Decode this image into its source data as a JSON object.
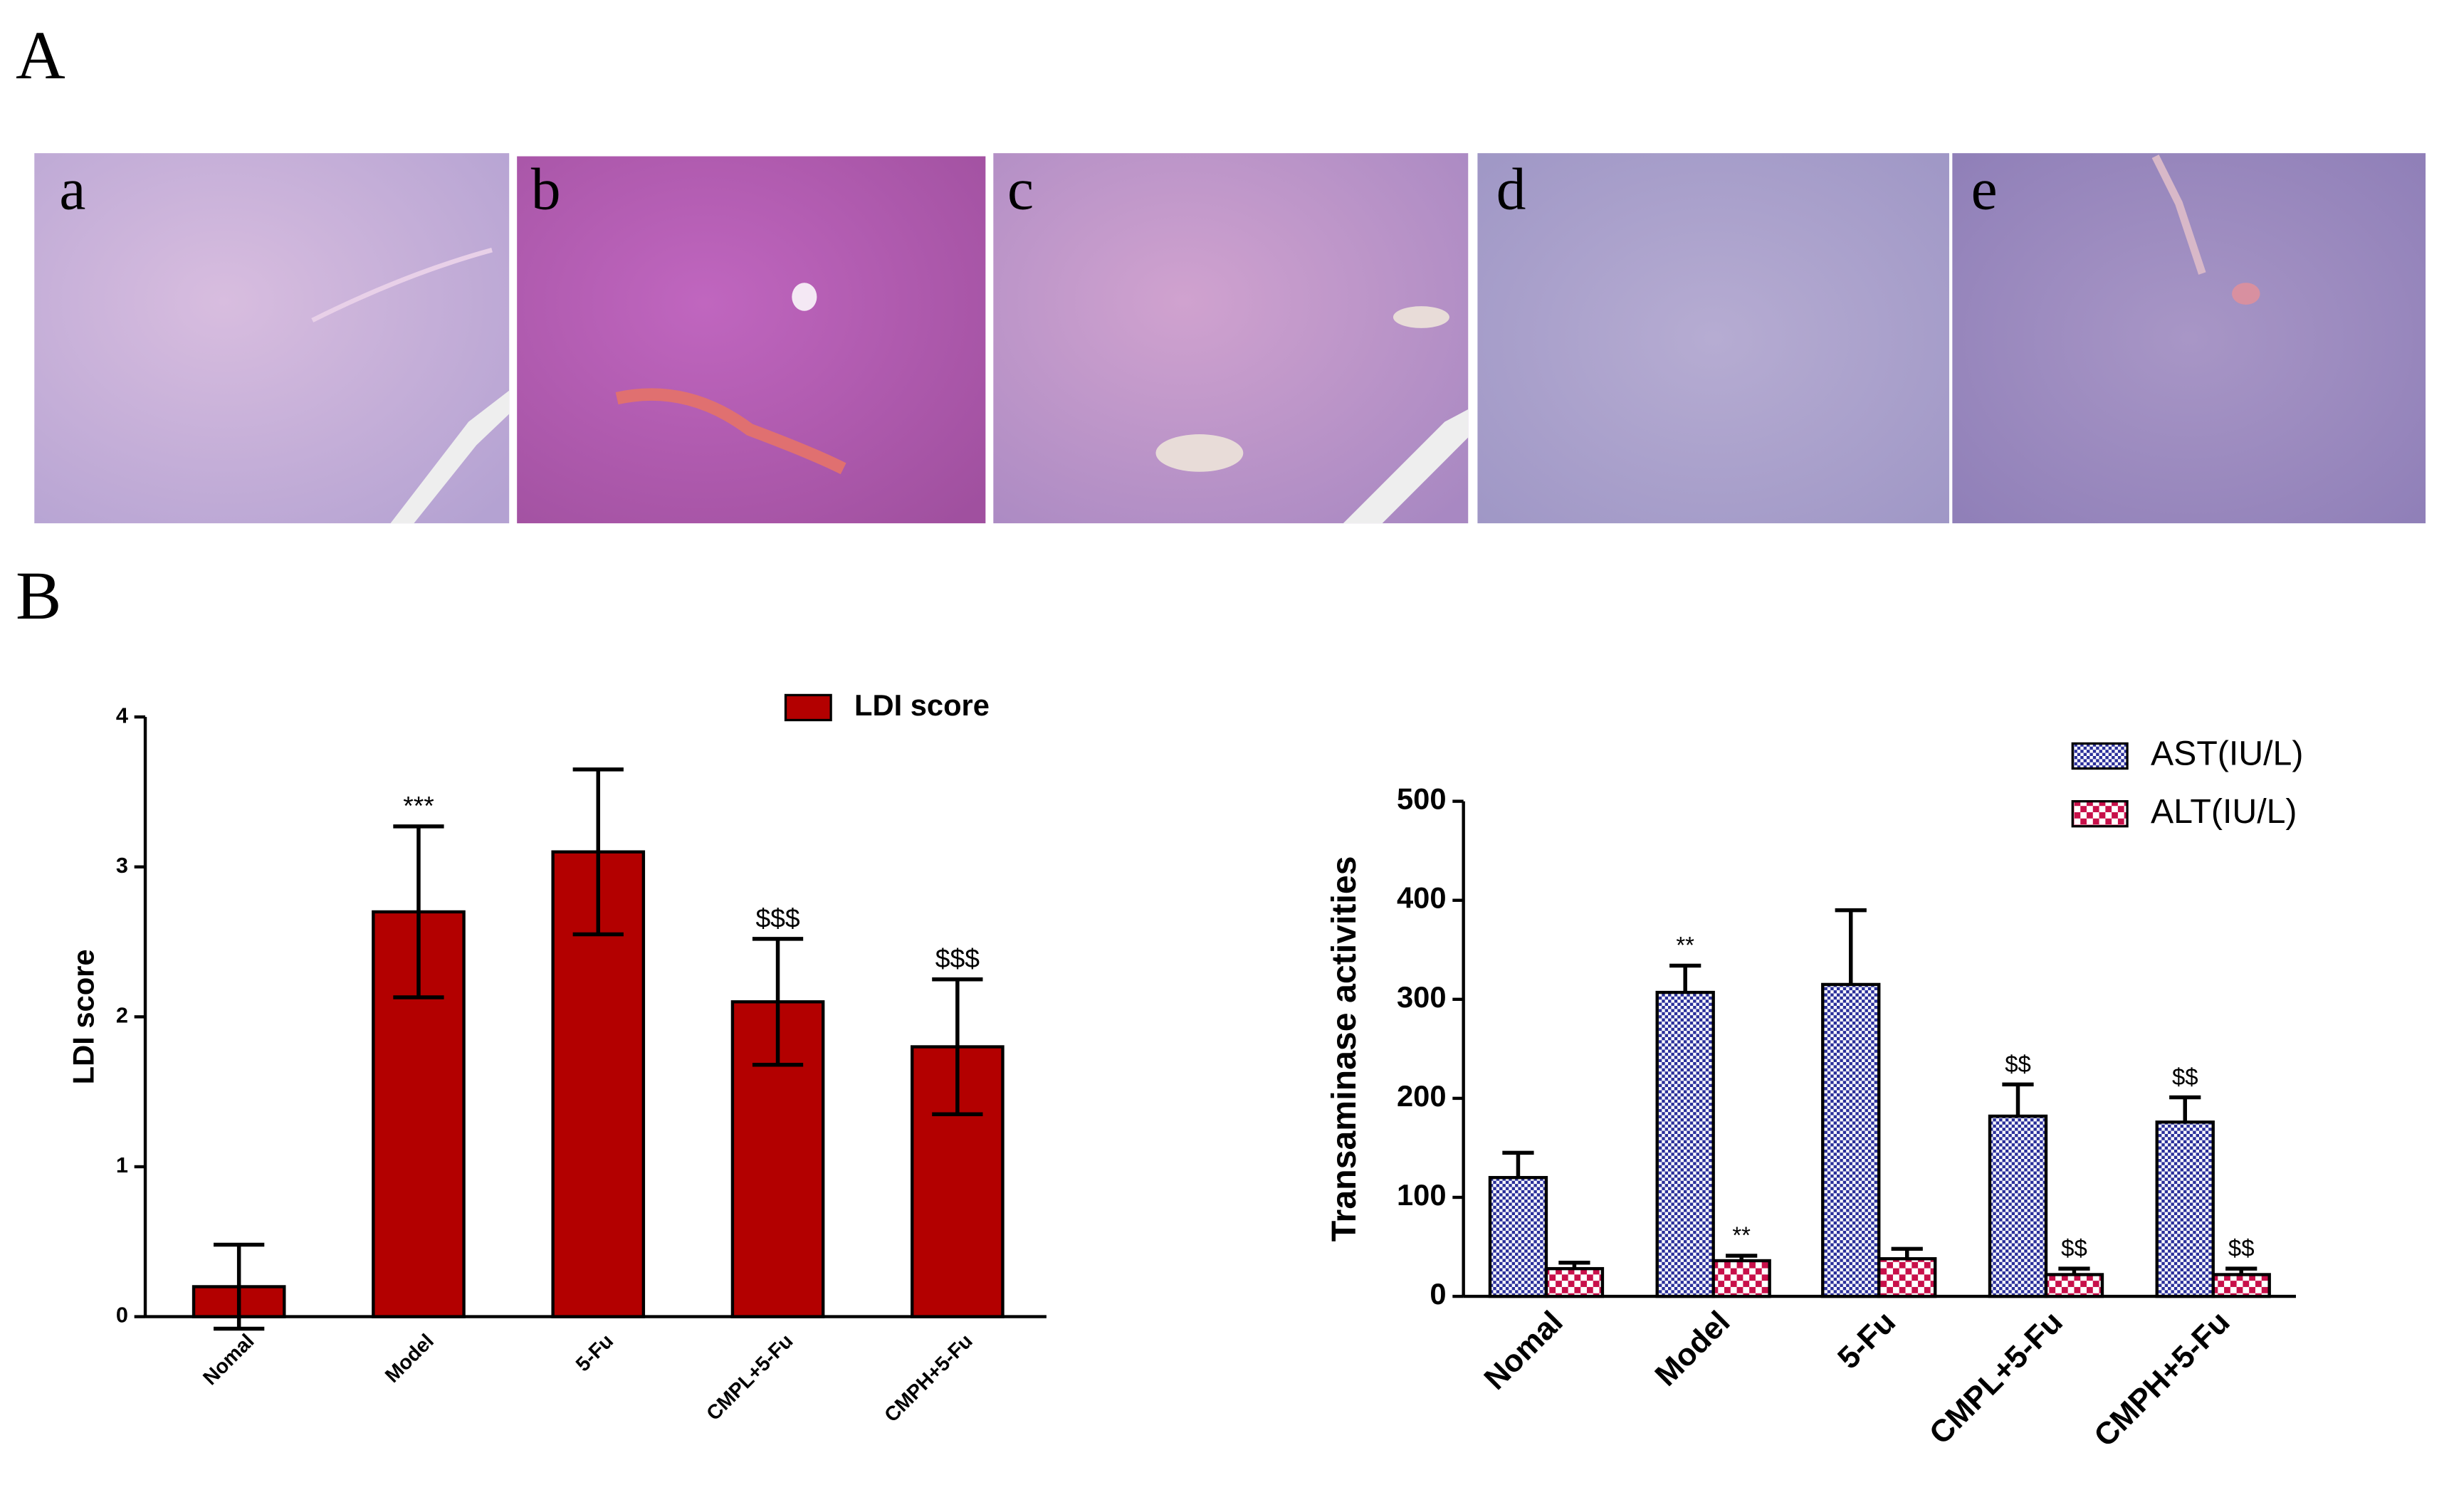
{
  "figure": {
    "panels": [
      "A",
      "B"
    ]
  },
  "images": [
    {
      "label": "a"
    },
    {
      "label": "b"
    },
    {
      "label": "c"
    },
    {
      "label": "d"
    },
    {
      "label": "e"
    }
  ],
  "chart_data": [
    {
      "type": "bar",
      "y_label": "LDI score",
      "categories": [
        "Nomal",
        "Model",
        "5-Fu",
        "CMPL+5-Fu",
        "CMPH+5-Fu"
      ],
      "series": [
        {
          "name": "LDI score",
          "color": "#b30000",
          "values": [
            0.2,
            2.7,
            3.1,
            2.1,
            1.8
          ],
          "errors": [
            0.28,
            0.57,
            0.55,
            0.42,
            0.45
          ],
          "annotations": [
            null,
            "***",
            null,
            "$$$",
            "$$$"
          ]
        }
      ],
      "ylim": [
        0,
        4
      ],
      "yticks": [
        0,
        1,
        2,
        3,
        4
      ]
    },
    {
      "type": "bar",
      "y_label": "Transaminase activities",
      "categories": [
        "Nomal",
        "Model",
        "5-Fu",
        "CMPL+5-Fu",
        "CMPH+5-Fu"
      ],
      "series": [
        {
          "name": "AST(IU/L)",
          "color": "#2a2f9a",
          "values": [
            120,
            307,
            315,
            182,
            176
          ],
          "errors": [
            25,
            27,
            75,
            32,
            25
          ],
          "annotations": [
            null,
            "**",
            null,
            "$$",
            "$$"
          ]
        },
        {
          "name": "ALT(IU/L)",
          "color": "#c8104a",
          "values": [
            28,
            36,
            38,
            22,
            22
          ],
          "errors": [
            6,
            5,
            10,
            6,
            6
          ],
          "annotations": [
            null,
            "**",
            null,
            "$$",
            "$$"
          ]
        }
      ],
      "ylim": [
        0,
        500
      ],
      "yticks": [
        0,
        100,
        200,
        300,
        400,
        500
      ]
    }
  ]
}
